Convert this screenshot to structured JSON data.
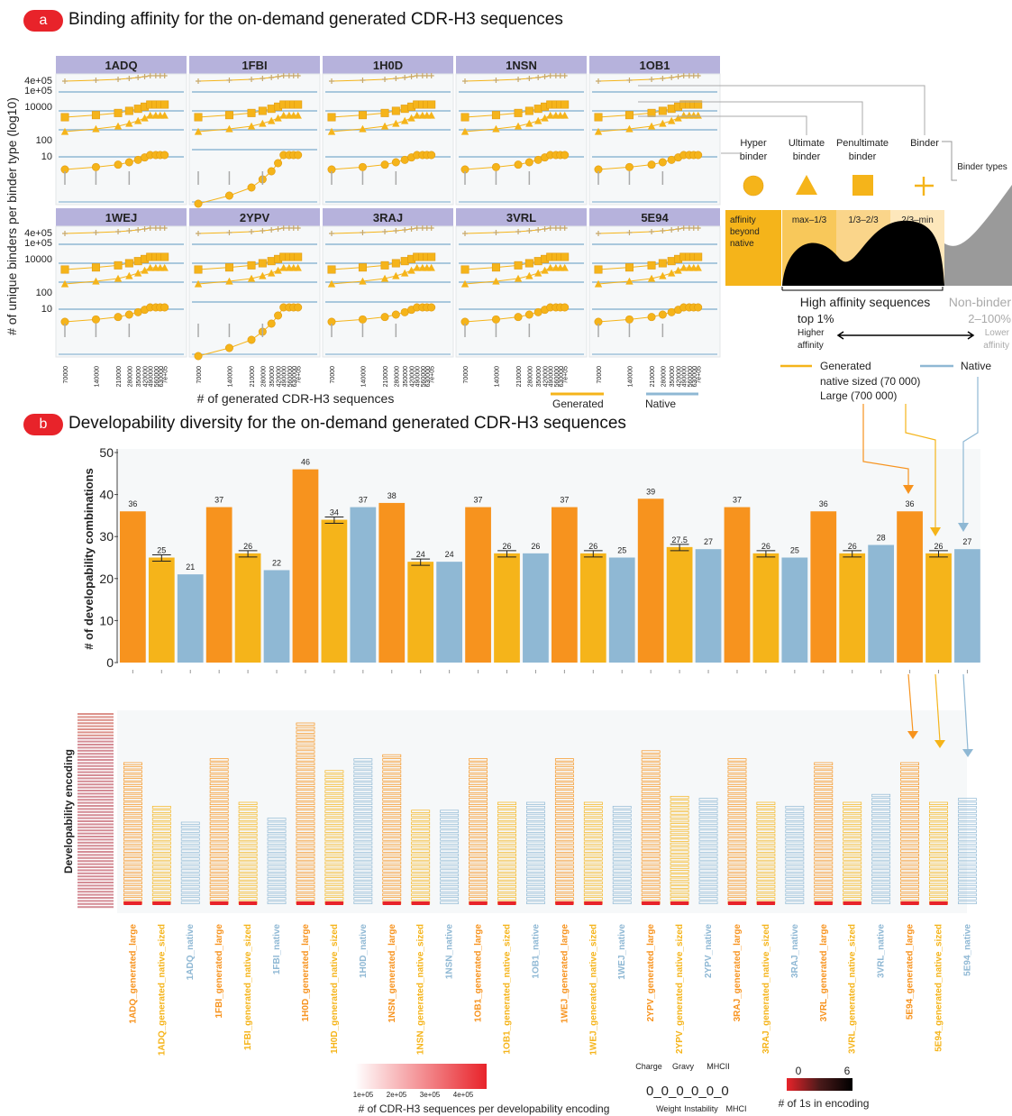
{
  "section_a": {
    "badge": "a",
    "title": "Binding affinity for the on-demand generated CDR-H3 sequences"
  },
  "section_b": {
    "badge": "b",
    "title": "Developability diversity for the on-demand generated CDR-H3 sequences"
  },
  "colors": {
    "large": "#f7931e",
    "native_sized": "#f5b41a",
    "native": "#8fb8d4",
    "panel_header": "#b6b2dc",
    "binder": "#f5b41a",
    "black": "#000000",
    "gray": "#999999",
    "badge": "#e8232a"
  },
  "chart_data": [
    {
      "type": "line",
      "title": "",
      "ylabel": "# of unique binders per binder type (log10)",
      "xlabel": "# of generated CDR-H3 sequences",
      "y_scale": "log",
      "y_ticks": [
        "4e+05",
        "1e+05",
        "10000",
        "100",
        "10"
      ],
      "x_ticks": [
        "70000",
        "140000",
        "210000",
        "280000",
        "350000",
        "420000",
        "490000",
        "560000",
        "630000",
        "7e+05"
      ],
      "panels": [
        "1ADQ",
        "1FBI",
        "1H0D",
        "1NSN",
        "1OB1",
        "1WEJ",
        "2YPV",
        "3RAJ",
        "3VRL",
        "5E94"
      ],
      "series": [
        {
          "name": "Generated"
        },
        {
          "name": "Native"
        }
      ]
    },
    {
      "type": "bar",
      "ylabel": "# of developability combinations",
      "ylim": [
        0,
        50
      ],
      "y_ticks": [
        0,
        10,
        20,
        30,
        40,
        50
      ],
      "categories": [
        "1ADQ_generated_large",
        "1ADQ_generated_native_sized",
        "1ADQ_native",
        "1FBI_generated_large",
        "1FBI_generated_native_sized",
        "1FBI_native",
        "1H0D_generated_large",
        "1H0D_generated_native_sized",
        "1H0D_native",
        "1NSN_generated_large",
        "1NSN_generated_native_sized",
        "1NSN_native",
        "1OB1_generated_large",
        "1OB1_generated_native_sized",
        "1OB1_native",
        "1WEJ_generated_large",
        "1WEJ_generated_native_sized",
        "1WEJ_native",
        "2YPV_generated_large",
        "2YPV_generated_native_sized",
        "2YPV_native",
        "3RAJ_generated_large",
        "3RAJ_generated_native_sized",
        "3RAJ_native",
        "3VRL_generated_large",
        "3VRL_generated_native_sized",
        "3VRL_native",
        "5E94_generated_large",
        "5E94_generated_native_sized",
        "5E94_native"
      ],
      "values": [
        36,
        25,
        21,
        37,
        26,
        22,
        46,
        34,
        37,
        38,
        24,
        24,
        37,
        26,
        26,
        37,
        26,
        25,
        39,
        27.5,
        27,
        37,
        26,
        25,
        36,
        26,
        28,
        36,
        26,
        27
      ],
      "labels": [
        "36",
        "25",
        "21",
        "37",
        "26",
        "22",
        "46",
        "34",
        "37",
        "38",
        "24",
        "24",
        "37",
        "26",
        "26",
        "37",
        "26",
        "25",
        "39",
        "27.5",
        "27",
        "37",
        "26",
        "25",
        "36",
        "26",
        "28",
        "36",
        "26",
        "27"
      ]
    }
  ],
  "panel_a": {
    "ylabel": "# of unique binders per binder type (log10)",
    "xlabel": "# of generated CDR-H3 sequences",
    "y_ticks": [
      "4e+05",
      "1e+05",
      "10000",
      "100",
      "10"
    ],
    "x_ticks": [
      "70000",
      "140000",
      "210000",
      "280000",
      "350000",
      "420000",
      "490000",
      "560000",
      "630000",
      "7e+05"
    ],
    "legend": {
      "generated": "Generated",
      "native": "Native"
    }
  },
  "legend_a": {
    "hyper": "Hyper binder",
    "ultimate": "Ultimate binder",
    "penultimate": "Penultimate binder",
    "binder": "Binder",
    "binder_types": "Binder types",
    "bins": [
      "affinity beyond native",
      "max–1/3",
      "1/3–2/3",
      "2/3–min"
    ],
    "high_affinity": "High affinity sequences",
    "top1": "top 1%",
    "non_binder": "Non-binder",
    "non_binder_pct": "2–100%",
    "higher_affinity": "Higher affinity",
    "lower_affinity": "Lower affinity",
    "generated": "Generated",
    "native": "Native",
    "native_sized": "native sized (70 000)",
    "large": "Large (700 000)"
  },
  "heatmap_b": {
    "ylabel": "Developability encoding",
    "colorbar_ticks": [
      "1e+05",
      "2e+05",
      "3e+05",
      "4e+05"
    ],
    "colorbar_label": "# of CDR-H3 sequences per developability encoding",
    "encoding_labels": [
      "Charge",
      "Gravy",
      "MHCII",
      "Weight",
      "Instability",
      "MHCI"
    ],
    "ones_label": "# of 1s in encoding",
    "ones_min": "0",
    "ones_max": "6"
  }
}
